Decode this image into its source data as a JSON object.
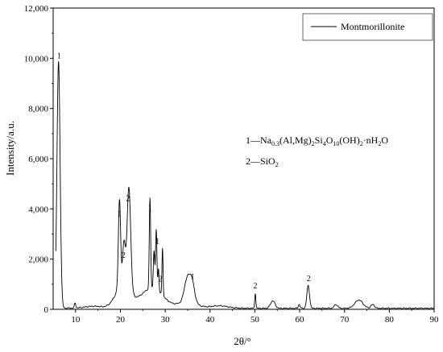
{
  "chart_data": {
    "type": "line",
    "xlabel": "2θ/°",
    "ylabel": "Intensity/a.u.",
    "xlim": [
      5,
      90
    ],
    "ylim": [
      0,
      12000
    ],
    "x_ticks": [
      10,
      20,
      30,
      40,
      50,
      60,
      70,
      80,
      90
    ],
    "y_ticks": [
      0,
      2000,
      4000,
      6000,
      8000,
      10000,
      12000
    ],
    "x_tick_labels": [
      "10",
      "20",
      "30",
      "40",
      "50",
      "60",
      "70",
      "80",
      "90"
    ],
    "y_tick_labels": [
      "0",
      "2,000",
      "4,000",
      "6,000",
      "8,000",
      "10,000",
      "12,000"
    ],
    "grid": false,
    "legend_position": "top-right",
    "series": [
      {
        "name": "Montmorillonite",
        "color": "#000000",
        "peaks": [
          {
            "x": 6.2,
            "y": 9800,
            "w": 0.35
          },
          {
            "x": 9.9,
            "y": 200,
            "w": 0.15
          },
          {
            "x": 19.8,
            "y": 3500,
            "w": 0.25
          },
          {
            "x": 20.8,
            "y": 1700,
            "w": 0.3
          },
          {
            "x": 21.9,
            "y": 4100,
            "w": 0.4
          },
          {
            "x": 26.6,
            "y": 3600,
            "w": 0.15
          },
          {
            "x": 27.5,
            "y": 1500,
            "w": 0.15
          },
          {
            "x": 28.0,
            "y": 2400,
            "w": 0.15
          },
          {
            "x": 28.5,
            "y": 900,
            "w": 0.12
          },
          {
            "x": 29.4,
            "y": 1900,
            "w": 0.12
          },
          {
            "x": 34.8,
            "y": 800,
            "w": 0.6
          },
          {
            "x": 35.9,
            "y": 900,
            "w": 0.6
          },
          {
            "x": 50.1,
            "y": 600,
            "w": 0.12
          },
          {
            "x": 54.0,
            "y": 300,
            "w": 0.5
          },
          {
            "x": 59.9,
            "y": 150,
            "w": 0.2
          },
          {
            "x": 61.9,
            "y": 900,
            "w": 0.3
          },
          {
            "x": 68.1,
            "y": 150,
            "w": 0.4
          },
          {
            "x": 73.2,
            "y": 330,
            "w": 0.9
          },
          {
            "x": 76.3,
            "y": 150,
            "w": 0.4
          }
        ],
        "humps": [
          {
            "x": 20.5,
            "y": 900,
            "w": 1.6
          },
          {
            "x": 27.0,
            "y": 800,
            "w": 2.5
          },
          {
            "x": 35.0,
            "y": 250,
            "w": 2.0
          },
          {
            "x": 14.0,
            "y": 80,
            "w": 2.0
          },
          {
            "x": 42.0,
            "y": 100,
            "w": 2.0
          }
        ]
      }
    ],
    "annotations": [
      {
        "text": "1",
        "x": 6.3,
        "y": 10000
      },
      {
        "text": "1",
        "x": 19.7,
        "y": 3700
      },
      {
        "text": "2",
        "x": 20.7,
        "y": 2050
      },
      {
        "text": "2",
        "x": 21.7,
        "y": 4320
      },
      {
        "text": "1",
        "x": 26.6,
        "y": 3930
      },
      {
        "text": "1",
        "x": 27.6,
        "y": 1950
      },
      {
        "text": "1",
        "x": 28.3,
        "y": 2600
      },
      {
        "text": "2",
        "x": 28.9,
        "y": 1100
      },
      {
        "text": "1",
        "x": 36.1,
        "y": 1200
      },
      {
        "text": "2",
        "x": 50.1,
        "y": 830
      },
      {
        "text": "2",
        "x": 62.0,
        "y": 1120
      }
    ],
    "legend_label": "Montmorillonite",
    "composition_notes": {
      "line1": {
        "prefix": "1—Na",
        "parts": [
          {
            "t": "0.3",
            "sub": true
          },
          {
            "t": "(Al,Mg)",
            "sub": false
          },
          {
            "t": "2",
            "sub": true
          },
          {
            "t": "Si",
            "sub": false
          },
          {
            "t": "4",
            "sub": true
          },
          {
            "t": "O",
            "sub": false
          },
          {
            "t": "10",
            "sub": true
          },
          {
            "t": "(OH)",
            "sub": false
          },
          {
            "t": "2",
            "sub": true
          },
          {
            "t": "·nH",
            "sub": false
          },
          {
            "t": "2",
            "sub": true
          },
          {
            "t": "O",
            "sub": false
          }
        ]
      },
      "line2": {
        "prefix": "2—SiO",
        "parts": [
          {
            "t": "2",
            "sub": true
          }
        ]
      }
    }
  }
}
